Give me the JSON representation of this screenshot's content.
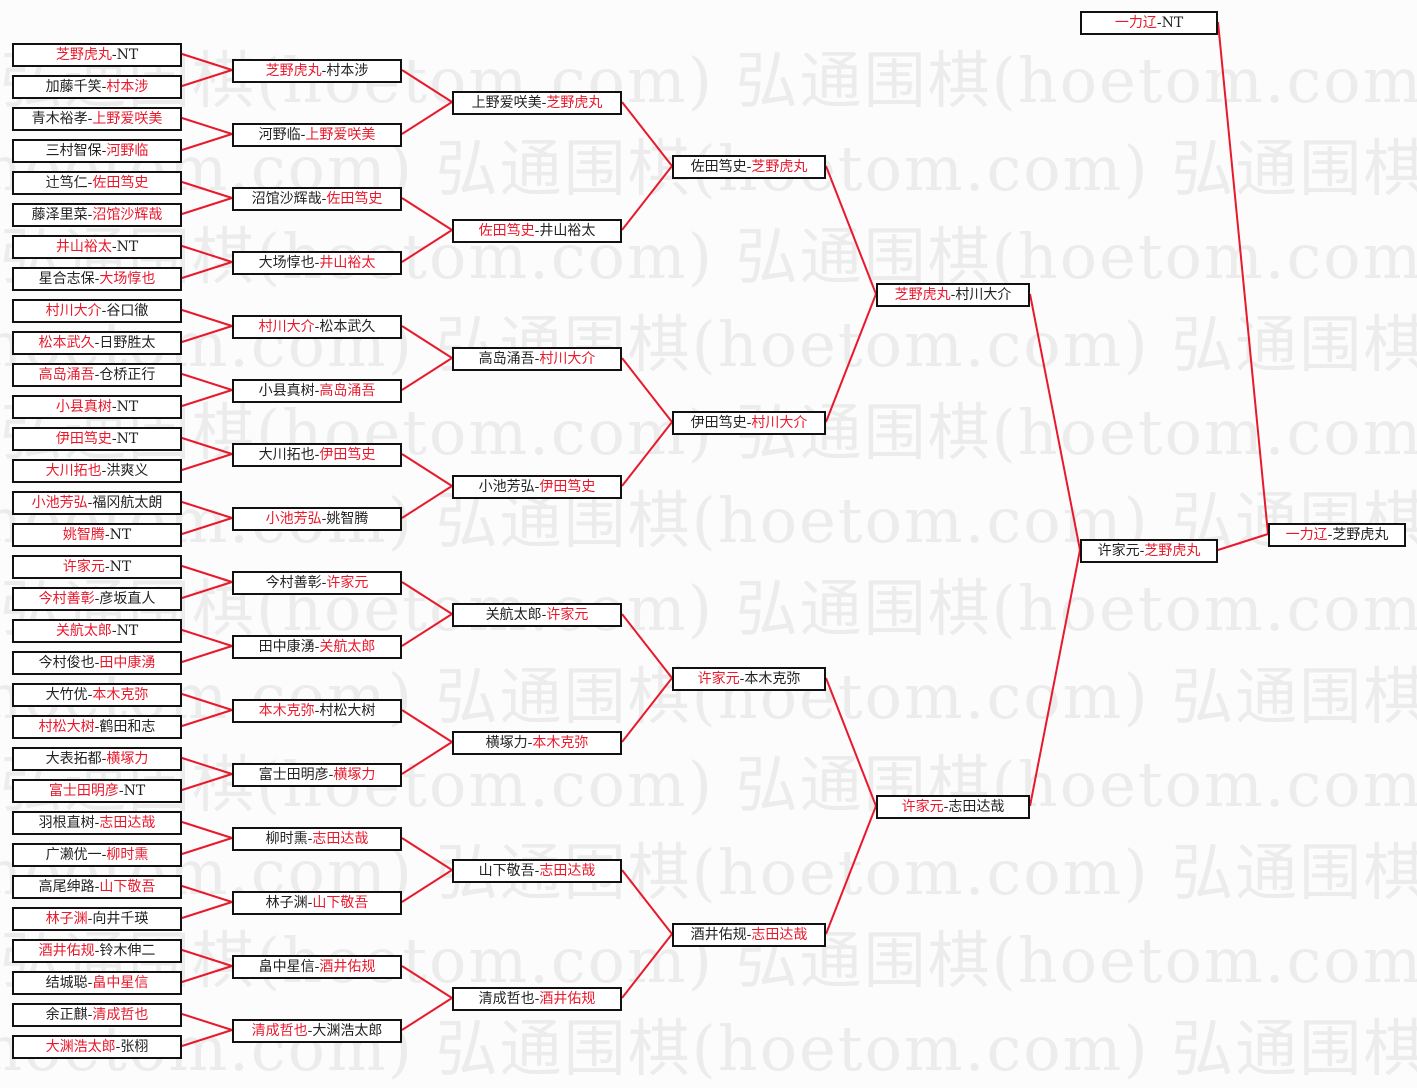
{
  "watermark": "弘通围棋(hoetom.com)",
  "colors": {
    "winner": "#e8192c",
    "line": "#e8192c",
    "text": "#222222",
    "border": "#111111"
  },
  "rounds": [
    [
      {
        "a": "芝野虎丸",
        "b": "NT",
        "w": 0
      },
      {
        "a": "加藤千笑",
        "b": "村本涉",
        "w": 1
      },
      {
        "a": "青木裕孝",
        "b": "上野爱咲美",
        "w": 1
      },
      {
        "a": "三村智保",
        "b": "河野临",
        "w": 1
      },
      {
        "a": "辻笃仁",
        "b": "佐田笃史",
        "w": 1
      },
      {
        "a": "藤泽里菜",
        "b": "沼馆沙辉哉",
        "w": 1
      },
      {
        "a": "井山裕太",
        "b": "NT",
        "w": 0
      },
      {
        "a": "星合志保",
        "b": "大场惇也",
        "w": 1
      },
      {
        "a": "村川大介",
        "b": "谷口徹",
        "w": 0
      },
      {
        "a": "松本武久",
        "b": "日野胜太",
        "w": 0
      },
      {
        "a": "高岛涌吾",
        "b": "仓桥正行",
        "w": 0
      },
      {
        "a": "小县真树",
        "b": "NT",
        "w": 0
      },
      {
        "a": "伊田笃史",
        "b": "NT",
        "w": 0
      },
      {
        "a": "大川拓也",
        "b": "洪爽义",
        "w": 0
      },
      {
        "a": "小池芳弘",
        "b": "福冈航太朗",
        "w": 0
      },
      {
        "a": "姚智腾",
        "b": "NT",
        "w": 0
      },
      {
        "a": "许家元",
        "b": "NT",
        "w": 0
      },
      {
        "a": "今村善彰",
        "b": "彦坂直人",
        "w": 0
      },
      {
        "a": "关航太郎",
        "b": "NT",
        "w": 0
      },
      {
        "a": "今村俊也",
        "b": "田中康湧",
        "w": 1
      },
      {
        "a": "大竹优",
        "b": "本木克弥",
        "w": 1
      },
      {
        "a": "村松大树",
        "b": "鹤田和志",
        "w": 0
      },
      {
        "a": "大表拓都",
        "b": "横塚力",
        "w": 1
      },
      {
        "a": "富士田明彦",
        "b": "NT",
        "w": 0
      },
      {
        "a": "羽根直树",
        "b": "志田达哉",
        "w": 1
      },
      {
        "a": "广濑优一",
        "b": "柳时熏",
        "w": 1
      },
      {
        "a": "高尾绅路",
        "b": "山下敬吾",
        "w": 1
      },
      {
        "a": "林子渊",
        "b": "向井千瑛",
        "w": 0
      },
      {
        "a": "酒井佑规",
        "b": "铃木伸二",
        "w": 0
      },
      {
        "a": "结城聪",
        "b": "畠中星信",
        "w": 1
      },
      {
        "a": "余正麒",
        "b": "清成哲也",
        "w": 1
      },
      {
        "a": "大渊浩太郎",
        "b": "张栩",
        "w": 0
      }
    ],
    [
      {
        "a": "芝野虎丸",
        "b": "村本涉",
        "w": 0
      },
      {
        "a": "河野临",
        "b": "上野爱咲美",
        "w": 1
      },
      {
        "a": "沼馆沙辉哉",
        "b": "佐田笃史",
        "w": 1
      },
      {
        "a": "大场惇也",
        "b": "井山裕太",
        "w": 1
      },
      {
        "a": "村川大介",
        "b": "松本武久",
        "w": 0
      },
      {
        "a": "小县真树",
        "b": "高岛涌吾",
        "w": 1
      },
      {
        "a": "大川拓也",
        "b": "伊田笃史",
        "w": 1
      },
      {
        "a": "小池芳弘",
        "b": "姚智腾",
        "w": 0
      },
      {
        "a": "今村善彰",
        "b": "许家元",
        "w": 1
      },
      {
        "a": "田中康湧",
        "b": "关航太郎",
        "w": 1
      },
      {
        "a": "本木克弥",
        "b": "村松大树",
        "w": 0
      },
      {
        "a": "富士田明彦",
        "b": "横塚力",
        "w": 1
      },
      {
        "a": "柳时熏",
        "b": "志田达哉",
        "w": 1
      },
      {
        "a": "林子渊",
        "b": "山下敬吾",
        "w": 1
      },
      {
        "a": "畠中星信",
        "b": "酒井佑规",
        "w": 1
      },
      {
        "a": "清成哲也",
        "b": "大渊浩太郎",
        "w": 0
      }
    ],
    [
      {
        "a": "上野爱咲美",
        "b": "芝野虎丸",
        "w": 1
      },
      {
        "a": "佐田笃史",
        "b": "井山裕太",
        "w": 0
      },
      {
        "a": "高岛涌吾",
        "b": "村川大介",
        "w": 1
      },
      {
        "a": "小池芳弘",
        "b": "伊田笃史",
        "w": 1
      },
      {
        "a": "关航太郎",
        "b": "许家元",
        "w": 1
      },
      {
        "a": "横塚力",
        "b": "本木克弥",
        "w": 1
      },
      {
        "a": "山下敬吾",
        "b": "志田达哉",
        "w": 1
      },
      {
        "a": "清成哲也",
        "b": "酒井佑规",
        "w": 1
      }
    ],
    [
      {
        "a": "佐田笃史",
        "b": "芝野虎丸",
        "w": 1
      },
      {
        "a": "伊田笃史",
        "b": "村川大介",
        "w": 1
      },
      {
        "a": "许家元",
        "b": "本木克弥",
        "w": 0
      },
      {
        "a": "酒井佑规",
        "b": "志田达哉",
        "w": 1
      }
    ],
    [
      {
        "a": "芝野虎丸",
        "b": "村川大介",
        "w": 0
      },
      {
        "a": "许家元",
        "b": "志田达哉",
        "w": 0
      }
    ],
    [
      {
        "a": "许家元",
        "b": "芝野虎丸",
        "w": 1
      }
    ]
  ],
  "seed": {
    "a": "一力辽",
    "b": "NT",
    "w": 0
  },
  "final": {
    "a": "一力辽",
    "b": "芝野虎丸",
    "w": 0
  }
}
